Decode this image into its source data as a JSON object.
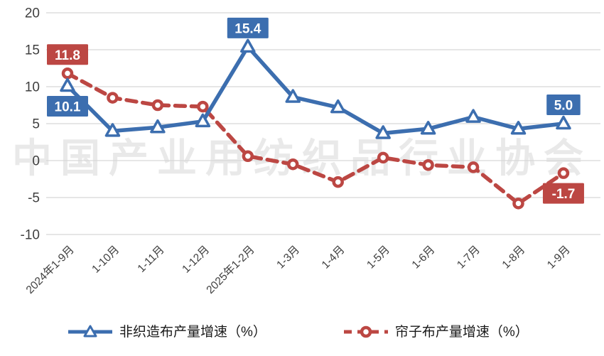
{
  "watermark": "中国产业用纺织品行业协会",
  "colors": {
    "blue": "#3C6EAF",
    "red": "#BC4743",
    "grid": "#D8D8D8",
    "axis_text": "#3F3F3F",
    "label_text": "#FFFFFF",
    "marker_fill": "#FFFFFF"
  },
  "chart_data": {
    "type": "line",
    "title": "",
    "xlabel": "",
    "ylabel": "",
    "ylim": [
      -10,
      20
    ],
    "yticks": [
      20,
      15,
      10,
      5,
      0,
      -5,
      -10
    ],
    "grid": true,
    "legend_position": "bottom",
    "categories": [
      "2024年1-9月",
      "1-10月",
      "1-11月",
      "1-12月",
      "2025年1-2月",
      "1-3月",
      "1-4月",
      "1-5月",
      "1-6月",
      "1-7月",
      "1-8月",
      "1-9月"
    ],
    "series": [
      {
        "name": "非织造布产量增速（%）",
        "color": "#3C6EAF",
        "style": "solid",
        "marker": "triangle",
        "values": [
          10.1,
          4.0,
          4.5,
          5.3,
          15.4,
          8.6,
          7.2,
          3.7,
          4.3,
          5.9,
          4.3,
          5.0
        ]
      },
      {
        "name": "帘子布产量增速（%）",
        "color": "#BC4743",
        "style": "dashed",
        "marker": "circle",
        "values": [
          11.8,
          8.5,
          7.5,
          7.3,
          0.6,
          -0.5,
          -2.9,
          0.4,
          -0.6,
          -0.9,
          -5.8,
          -1.7
        ]
      }
    ],
    "point_labels": [
      {
        "series": 1,
        "index": 0,
        "text": "11.8",
        "position": "above"
      },
      {
        "series": 0,
        "index": 0,
        "text": "10.1",
        "position": "below"
      },
      {
        "series": 0,
        "index": 4,
        "text": "15.4",
        "position": "above"
      },
      {
        "series": 0,
        "index": 11,
        "text": "5.0",
        "position": "above"
      },
      {
        "series": 1,
        "index": 11,
        "text": "-1.7",
        "position": "below"
      }
    ]
  },
  "legend": {
    "items": [
      {
        "label": "非织造布产量增速（%）"
      },
      {
        "label": "帘子布产量增速（%）"
      }
    ]
  }
}
